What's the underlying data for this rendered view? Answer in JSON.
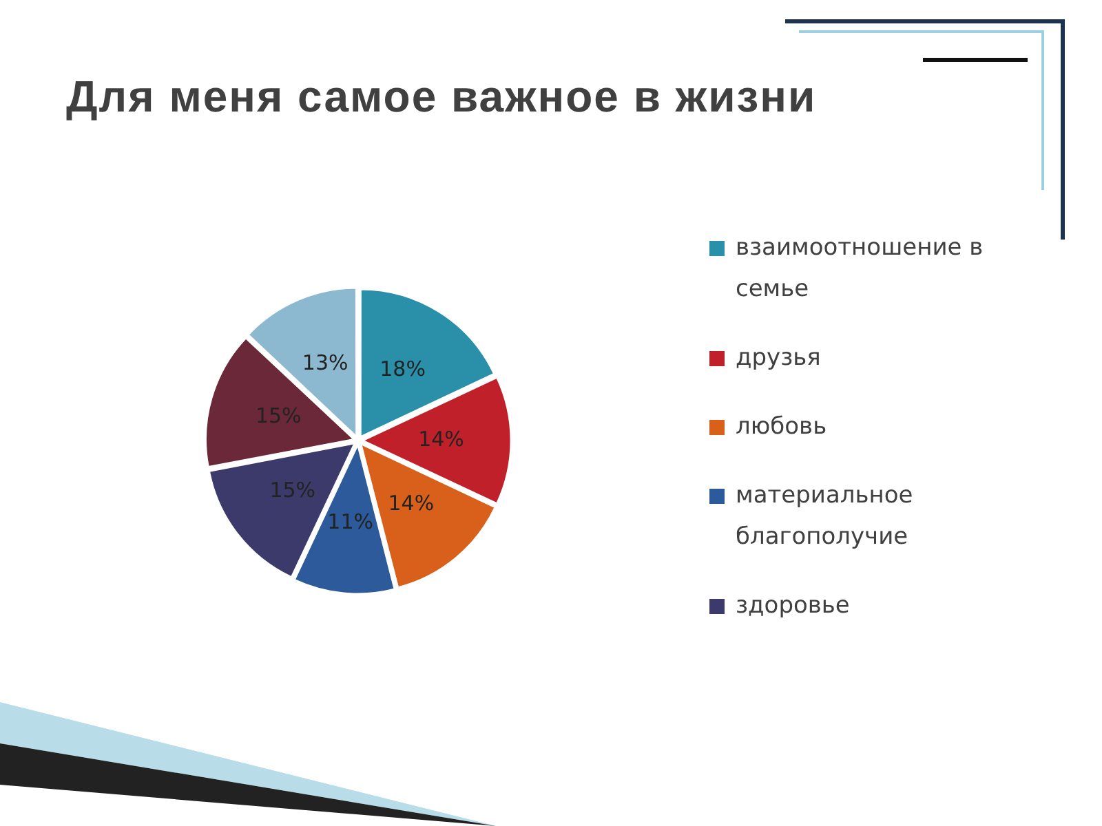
{
  "chart_data": {
    "type": "pie",
    "title": "Для меня самое важное в жизни",
    "categories": [
      "взаимоотношение в семье",
      "друзья",
      "любовь",
      "материальное благополучие",
      "здоровье",
      null,
      null
    ],
    "values": [
      18,
      14,
      14,
      11,
      15,
      15,
      13
    ],
    "colors": [
      "#2a8fa8",
      "#c0202a",
      "#d8601a",
      "#2c5a9a",
      "#3c3a6a",
      "#6a2838",
      "#8cb8d0"
    ],
    "value_labels": [
      "18%",
      "14%",
      "14%",
      "11%",
      "15%",
      "15%",
      "13%"
    ],
    "legend": "right"
  }
}
